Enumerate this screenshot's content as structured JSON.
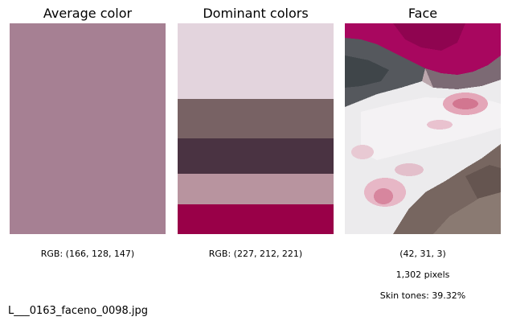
{
  "panels": {
    "average": {
      "title": "Average color",
      "color": "#a68093",
      "caption": "RGB: (166, 128, 147)"
    },
    "dominant": {
      "title": "Dominant colors",
      "colors": [
        "#e3d4dd",
        "#786264",
        "#4a3342",
        "#b8949f",
        "#990048"
      ],
      "caption": "RGB: (227, 212, 221)"
    },
    "face": {
      "title": "Face",
      "caption_rgb": "(42, 31, 3)",
      "caption_pixels": "1,302 pixels",
      "caption_skin": "Skin tones: 39.32%"
    }
  },
  "filename": "L___0163_faceno_0098.jpg"
}
